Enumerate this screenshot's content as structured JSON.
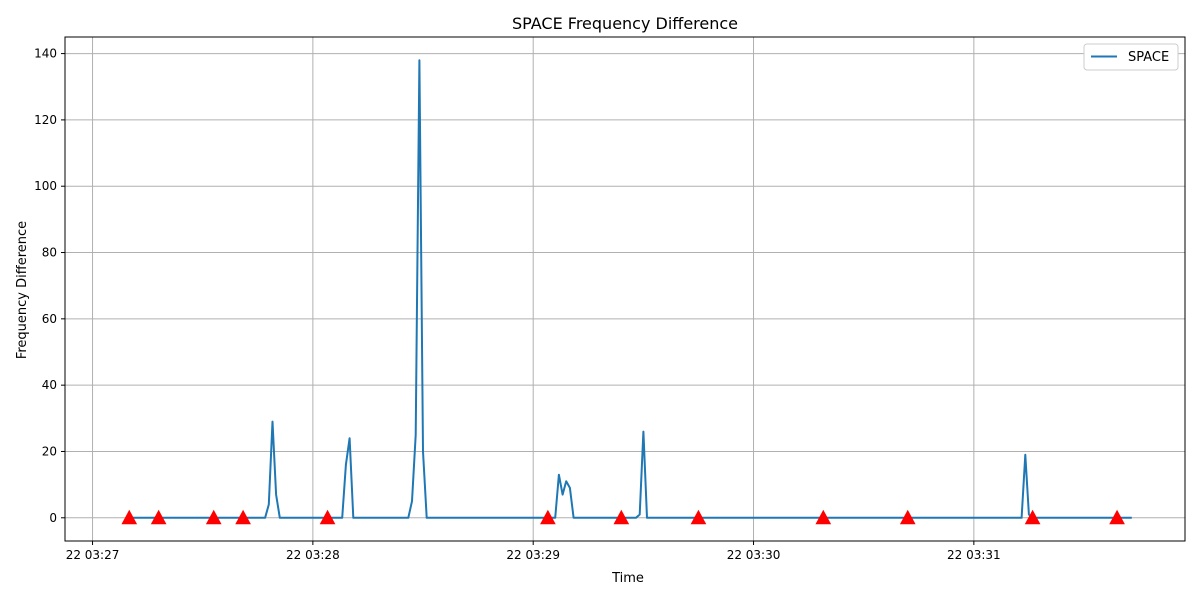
{
  "chart_data": {
    "type": "line",
    "title": "SPACE Frequency Difference",
    "xlabel": "Time",
    "ylabel": "Frequency Difference",
    "x_unit": "seconds after 22 03:27:00",
    "xlim": [
      -7.5,
      297.5
    ],
    "ylim": [
      -7,
      145
    ],
    "x_ticks": [
      {
        "value": 0,
        "label": "22 03:27"
      },
      {
        "value": 60,
        "label": "22 03:28"
      },
      {
        "value": 120,
        "label": "22 03:29"
      },
      {
        "value": 180,
        "label": "22 03:30"
      },
      {
        "value": 240,
        "label": "22 03:31"
      }
    ],
    "y_ticks": [
      0,
      20,
      40,
      60,
      80,
      100,
      120,
      140
    ],
    "grid": true,
    "legend": {
      "position": "top-right",
      "entries": [
        "SPACE"
      ]
    },
    "series": [
      {
        "name": "SPACE",
        "color": "#1f77b4",
        "x": [
          10,
          47,
          48,
          49,
          50,
          51,
          52,
          53,
          54,
          55,
          68,
          69,
          70,
          71,
          86,
          87,
          88,
          89,
          90,
          91,
          92,
          126,
          127,
          128,
          129,
          130,
          131,
          132,
          148,
          149,
          150,
          151,
          152,
          253,
          254,
          255,
          256,
          283
        ],
        "y": [
          0,
          0,
          4,
          29,
          7,
          0,
          0,
          0,
          0,
          0,
          0,
          16,
          24,
          0,
          0,
          5,
          25,
          138,
          20,
          0,
          0,
          0,
          13,
          7,
          11,
          9,
          0,
          0,
          0,
          1,
          26,
          0,
          0,
          0,
          19,
          1,
          0,
          0
        ]
      }
    ],
    "markers": {
      "shape": "triangle-up",
      "color": "#ff0000",
      "x": [
        10,
        18,
        33,
        41,
        64,
        124,
        144,
        165,
        199,
        222,
        256,
        279
      ],
      "y": [
        0,
        0,
        0,
        0,
        0,
        0,
        0,
        0,
        0,
        0,
        0,
        0
      ]
    }
  }
}
